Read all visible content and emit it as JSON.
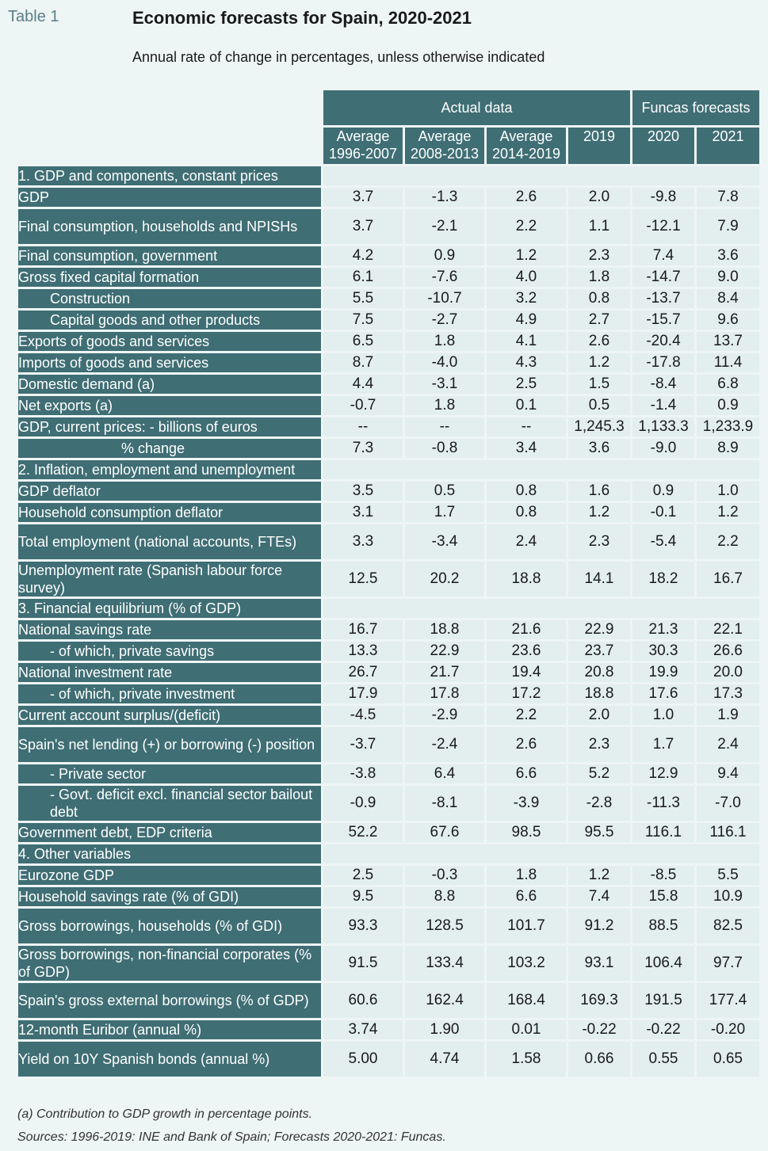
{
  "header": {
    "table_label": "Table 1",
    "title": "Economic forecasts for Spain, 2020-2021",
    "subtitle": "Annual rate of change in percentages, unless otherwise indicated"
  },
  "groups": {
    "actual": "Actual data",
    "forecast": "Funcas forecasts"
  },
  "columns": [
    "Average 1996-2007",
    "Average 2008-2013",
    "Average 2014-2019",
    "2019",
    "2020",
    "2021"
  ],
  "rows": [
    {
      "type": "section",
      "label": "1. GDP and components, constant prices"
    },
    {
      "type": "data",
      "indent": 1,
      "label": "GDP",
      "values": [
        "3.7",
        "-1.3",
        "2.6",
        "2.0",
        "-9.8",
        "7.8"
      ]
    },
    {
      "type": "data",
      "indent": 1,
      "tall": true,
      "label": "Final consumption, households and NPISHs",
      "values": [
        "3.7",
        "-2.1",
        "2.2",
        "1.1",
        "-12.1",
        "7.9"
      ]
    },
    {
      "type": "data",
      "indent": 1,
      "label": "Final consumption, government",
      "values": [
        "4.2",
        "0.9",
        "1.2",
        "2.3",
        "7.4",
        "3.6"
      ]
    },
    {
      "type": "data",
      "indent": 1,
      "label": "Gross fixed capital formation",
      "values": [
        "6.1",
        "-7.6",
        "4.0",
        "1.8",
        "-14.7",
        "9.0"
      ]
    },
    {
      "type": "data",
      "indent": 2,
      "label": "Construction",
      "values": [
        "5.5",
        "-10.7",
        "3.2",
        "0.8",
        "-13.7",
        "8.4"
      ]
    },
    {
      "type": "data",
      "indent": 2,
      "label": "Capital goods and other products",
      "values": [
        "7.5",
        "-2.7",
        "4.9",
        "2.7",
        "-15.7",
        "9.6"
      ]
    },
    {
      "type": "data",
      "indent": 1,
      "label": "Exports of goods and services",
      "values": [
        "6.5",
        "1.8",
        "4.1",
        "2.6",
        "-20.4",
        "13.7"
      ]
    },
    {
      "type": "data",
      "indent": 1,
      "label": "Imports of goods and services",
      "values": [
        "8.7",
        "-4.0",
        "4.3",
        "1.2",
        "-17.8",
        "11.4"
      ]
    },
    {
      "type": "data",
      "indent": 1,
      "label": "Domestic demand (a)",
      "values": [
        "4.4",
        "-3.1",
        "2.5",
        "1.5",
        "-8.4",
        "6.8"
      ]
    },
    {
      "type": "data",
      "indent": 1,
      "label": "Net exports (a)",
      "values": [
        "-0.7",
        "1.8",
        "0.1",
        "0.5",
        "-1.4",
        "0.9"
      ]
    },
    {
      "type": "data",
      "indent": 1,
      "label": "GDP, current prices: - billions of euros",
      "values": [
        "--",
        "--",
        "--",
        "1,245.3",
        "1,133.3",
        "1,233.9"
      ]
    },
    {
      "type": "data",
      "indent": 3,
      "label": "% change",
      "values": [
        "7.3",
        "-0.8",
        "3.4",
        "3.6",
        "-9.0",
        "8.9"
      ]
    },
    {
      "type": "section",
      "label": "2. Inflation, employment and unemployment"
    },
    {
      "type": "data",
      "indent": 1,
      "label": "GDP deflator",
      "values": [
        "3.5",
        "0.5",
        "0.8",
        "1.6",
        "0.9",
        "1.0"
      ]
    },
    {
      "type": "data",
      "indent": 1,
      "label": "Household consumption deflator",
      "values": [
        "3.1",
        "1.7",
        "0.8",
        "1.2",
        "-0.1",
        "1.2"
      ]
    },
    {
      "type": "data",
      "indent": 1,
      "tall": true,
      "label": "Total employment (national accounts, FTEs)",
      "values": [
        "3.3",
        "-3.4",
        "2.4",
        "2.3",
        "-5.4",
        "2.2"
      ]
    },
    {
      "type": "data",
      "indent": 1,
      "tall": true,
      "label": "Unemployment rate (Spanish labour force survey)",
      "values": [
        "12.5",
        "20.2",
        "18.8",
        "14.1",
        "18.2",
        "16.7"
      ]
    },
    {
      "type": "section",
      "label": "3. Financial equilibrium (% of GDP)"
    },
    {
      "type": "data",
      "indent": 1,
      "label": "National savings rate",
      "values": [
        "16.7",
        "18.8",
        "21.6",
        "22.9",
        "21.3",
        "22.1"
      ]
    },
    {
      "type": "data",
      "indent": 2,
      "label": "- of which, private savings",
      "values": [
        "13.3",
        "22.9",
        "23.6",
        "23.7",
        "30.3",
        "26.6"
      ]
    },
    {
      "type": "data",
      "indent": 1,
      "label": "National investment rate",
      "values": [
        "26.7",
        "21.7",
        "19.4",
        "20.8",
        "19.9",
        "20.0"
      ]
    },
    {
      "type": "data",
      "indent": 2,
      "label": "- of which, private investment",
      "values": [
        "17.9",
        "17.8",
        "17.2",
        "18.8",
        "17.6",
        "17.3"
      ]
    },
    {
      "type": "data",
      "indent": 1,
      "label": "Current account surplus/(deficit)",
      "values": [
        "-4.5",
        "-2.9",
        "2.2",
        "2.0",
        "1.0",
        "1.9"
      ]
    },
    {
      "type": "data",
      "indent": 1,
      "tall": true,
      "label": "Spain's net lending (+) or borrowing (-) position",
      "values": [
        "-3.7",
        "-2.4",
        "2.6",
        "2.3",
        "1.7",
        "2.4"
      ]
    },
    {
      "type": "data",
      "indent": 2,
      "label": "- Private sector",
      "values": [
        "-3.8",
        "6.4",
        "6.6",
        "5.2",
        "12.9",
        "9.4"
      ]
    },
    {
      "type": "data",
      "indent": 2,
      "tall": true,
      "label": "- Govt. deficit excl. financial sector bailout debt",
      "values": [
        "-0.9",
        "-8.1",
        "-3.9",
        "-2.8",
        "-11.3",
        "-7.0"
      ]
    },
    {
      "type": "data",
      "indent": 1,
      "label": "Government debt, EDP criteria",
      "values": [
        "52.2",
        "67.6",
        "98.5",
        "95.5",
        "116.1",
        "116.1"
      ]
    },
    {
      "type": "section",
      "label": "4. Other variables"
    },
    {
      "type": "data",
      "indent": 1,
      "label": "Eurozone GDP",
      "values": [
        "2.5",
        "-0.3",
        "1.8",
        "1.2",
        "-8.5",
        "5.5"
      ]
    },
    {
      "type": "data",
      "indent": 1,
      "label": "Household savings rate (% of GDI)",
      "values": [
        "9.5",
        "8.8",
        "6.6",
        "7.4",
        "15.8",
        "10.9"
      ]
    },
    {
      "type": "data",
      "indent": 1,
      "tall": true,
      "label": "Gross borrowings, households (% of GDI)",
      "values": [
        "93.3",
        "128.5",
        "101.7",
        "91.2",
        "88.5",
        "82.5"
      ]
    },
    {
      "type": "data",
      "indent": 1,
      "tall": true,
      "label": "Gross borrowings, non-financial corporates (% of GDP)",
      "values": [
        "91.5",
        "133.4",
        "103.2",
        "93.1",
        "106.4",
        "97.7"
      ]
    },
    {
      "type": "data",
      "indent": 1,
      "tall": true,
      "label": "Spain's gross external borrowings (% of GDP)",
      "values": [
        "60.6",
        "162.4",
        "168.4",
        "169.3",
        "191.5",
        "177.4"
      ]
    },
    {
      "type": "data",
      "indent": 1,
      "label": "12-month Euribor (annual %)",
      "values": [
        "3.74",
        "1.90",
        "0.01",
        "-0.22",
        "-0.22",
        "-0.20"
      ]
    },
    {
      "type": "data",
      "indent": 1,
      "tall": true,
      "label": "Yield on 10Y Spanish bonds (annual %)",
      "values": [
        "5.00",
        "4.74",
        "1.58",
        "0.66",
        "0.55",
        "0.65"
      ]
    }
  ],
  "footnote": "(a) Contribution to GDP growth in percentage points.",
  "sources": "Sources: 1996-2019: INE and Bank of Spain; Forecasts 2020-2021: Funcas."
}
